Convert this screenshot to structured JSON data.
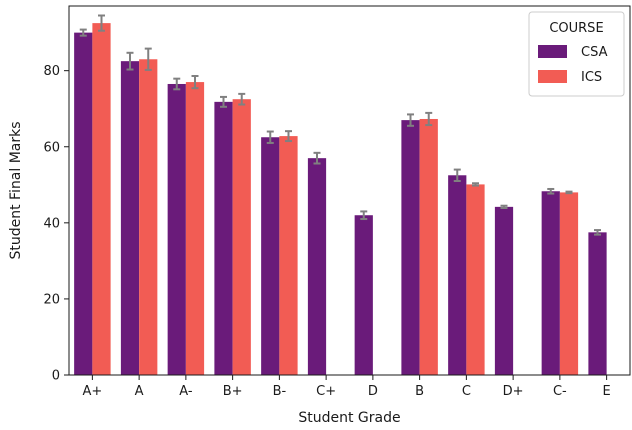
{
  "chart_data": {
    "type": "bar",
    "xlabel": "Student Grade",
    "ylabel": "Student Final Marks",
    "categories": [
      "A+",
      "A",
      "A-",
      "B+",
      "B-",
      "C+",
      "D",
      "B",
      "C",
      "D+",
      "C-",
      "E"
    ],
    "ylim": [
      0,
      97
    ],
    "yticks": [
      0,
      20,
      40,
      60,
      80
    ],
    "legend": {
      "title": "COURSE",
      "placement": "top-right"
    },
    "grid": false,
    "series": [
      {
        "name": "CSA",
        "color": "#6a1b7a",
        "values": [
          90,
          82.5,
          76.5,
          71.8,
          62.5,
          57,
          42,
          67,
          52.5,
          44.2,
          48.3,
          37.5
        ],
        "err": [
          0.8,
          2.2,
          1.4,
          1.3,
          1.5,
          1.4,
          1.0,
          1.5,
          1.5,
          0.3,
          0.6,
          0.6
        ]
      },
      {
        "name": "ICS",
        "color": "#f25c54",
        "values": [
          92.5,
          83,
          77,
          72.5,
          62.8,
          null,
          null,
          67.3,
          50.1,
          null,
          48,
          null
        ],
        "err": [
          2.0,
          2.8,
          1.6,
          1.4,
          1.3,
          null,
          null,
          1.6,
          0.3,
          null,
          0.2,
          null
        ]
      }
    ]
  }
}
